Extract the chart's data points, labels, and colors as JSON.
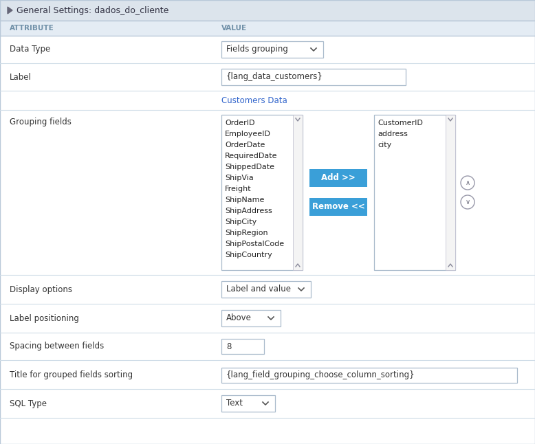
{
  "title": "General Settings: dados_do_cliente",
  "title_bg": "#dce4ec",
  "title_fg": "#444444",
  "header_bg": "#e4ecf4",
  "header_fg": "#7090a8",
  "attr_col": "ATTRIBUTE",
  "val_col": "VALUE",
  "bg_color": "#ffffff",
  "outer_border": "#b8c8d8",
  "row_sep_color": "#d0dde8",
  "left_items": [
    "OrderID",
    "EmployeeID",
    "OrderDate",
    "RequiredDate",
    "ShippedDate",
    "ShipVia",
    "Freight",
    "ShipName",
    "ShipAddress",
    "ShipCity",
    "ShipRegion",
    "ShipPostalCode",
    "ShipCountry"
  ],
  "right_items": [
    "CustomerID",
    "address",
    "city"
  ],
  "btn_add_color": "#3a9fd8",
  "btn_add_text": "Add >>",
  "btn_remove_color": "#3a9fd8",
  "btn_remove_text": "Remove <<"
}
